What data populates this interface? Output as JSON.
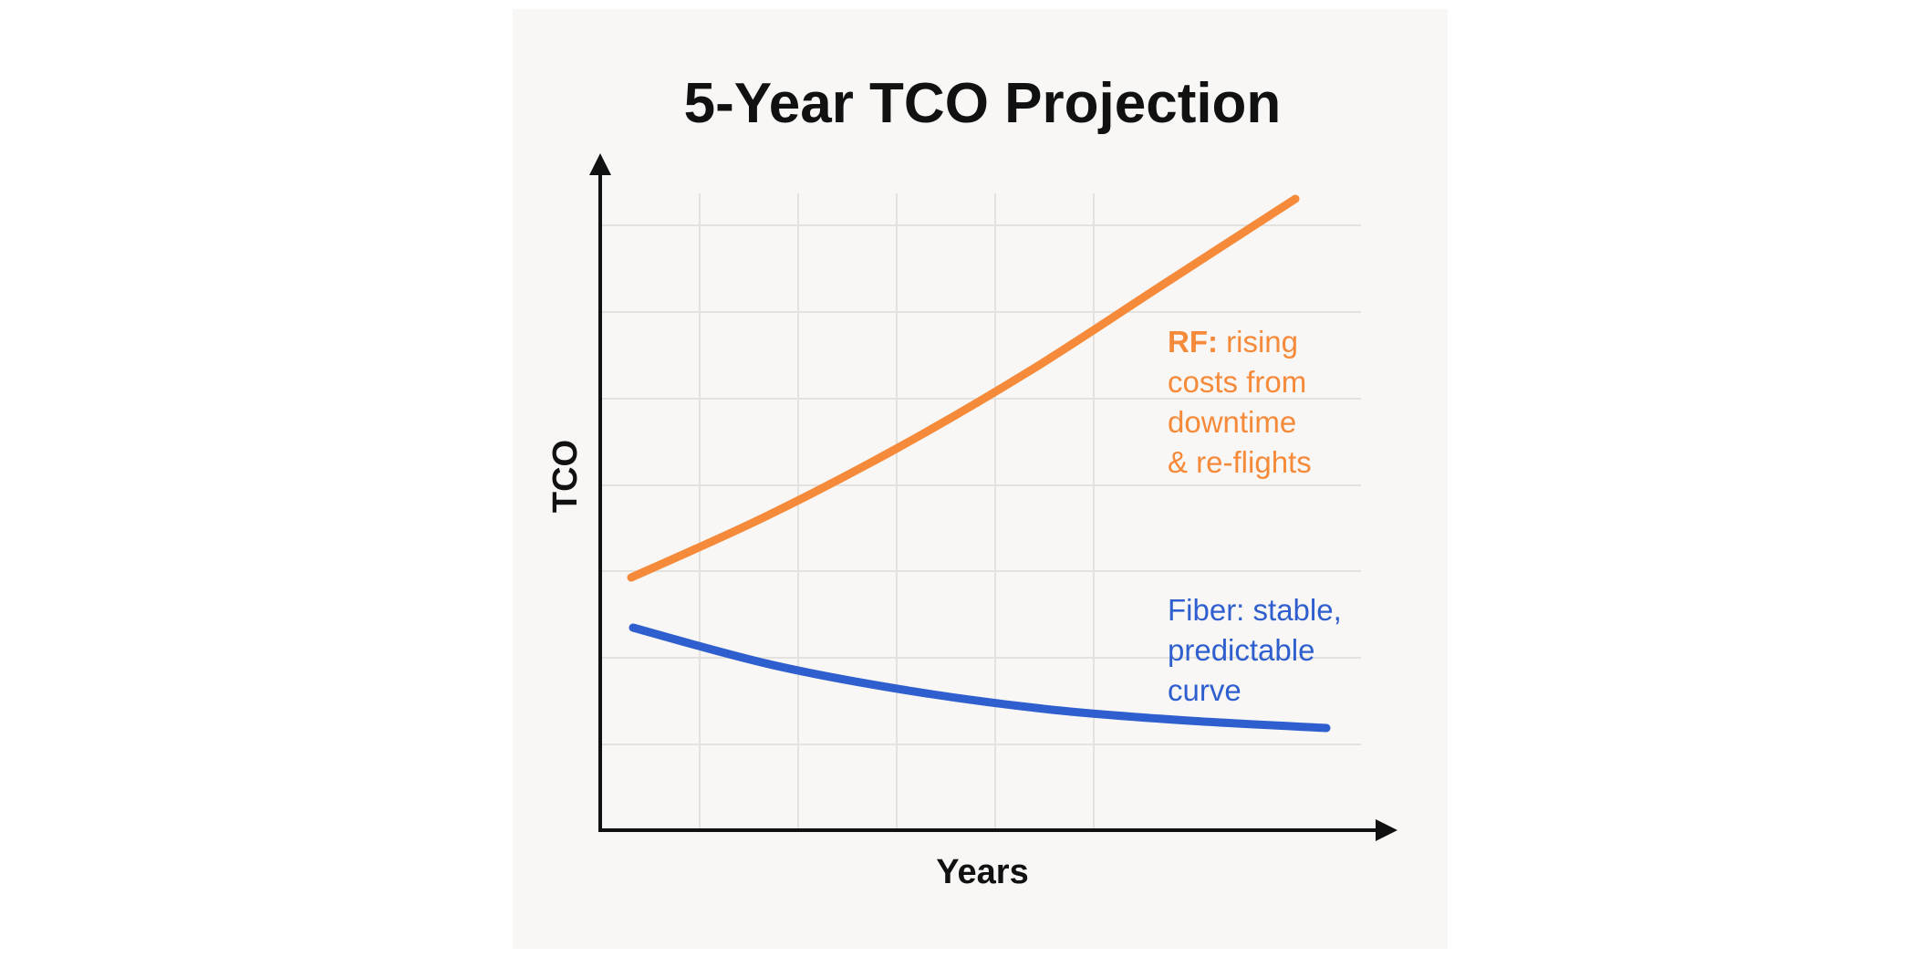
{
  "chart_data": {
    "type": "line",
    "title": "5-Year TCO Projection",
    "xlabel": "Years",
    "ylabel": "TCO",
    "grid": true,
    "x": [
      0,
      1,
      2,
      3,
      4,
      5
    ],
    "xlim": [
      0,
      5.4
    ],
    "ylim": [
      0,
      7.4
    ],
    "series": [
      {
        "name": "RF",
        "color": "#f58a3a",
        "values": [
          3.0,
          3.7,
          4.5,
          5.4,
          6.4,
          7.4
        ]
      },
      {
        "name": "Fiber",
        "color": "#2f5fcf",
        "values": [
          2.4,
          1.9,
          1.55,
          1.3,
          1.15,
          1.05
        ]
      }
    ],
    "annotations": [
      {
        "series": "RF",
        "color": "#f58a3a",
        "bold_lead": "RF:",
        "rest": " rising",
        "lines": [
          "costs from",
          "downtime",
          "& re-flights"
        ]
      },
      {
        "series": "Fiber",
        "color": "#2f5fcf",
        "bold_lead": "",
        "rest": "Fiber: stable,",
        "lines": [
          "predictable",
          "curve"
        ]
      }
    ]
  }
}
